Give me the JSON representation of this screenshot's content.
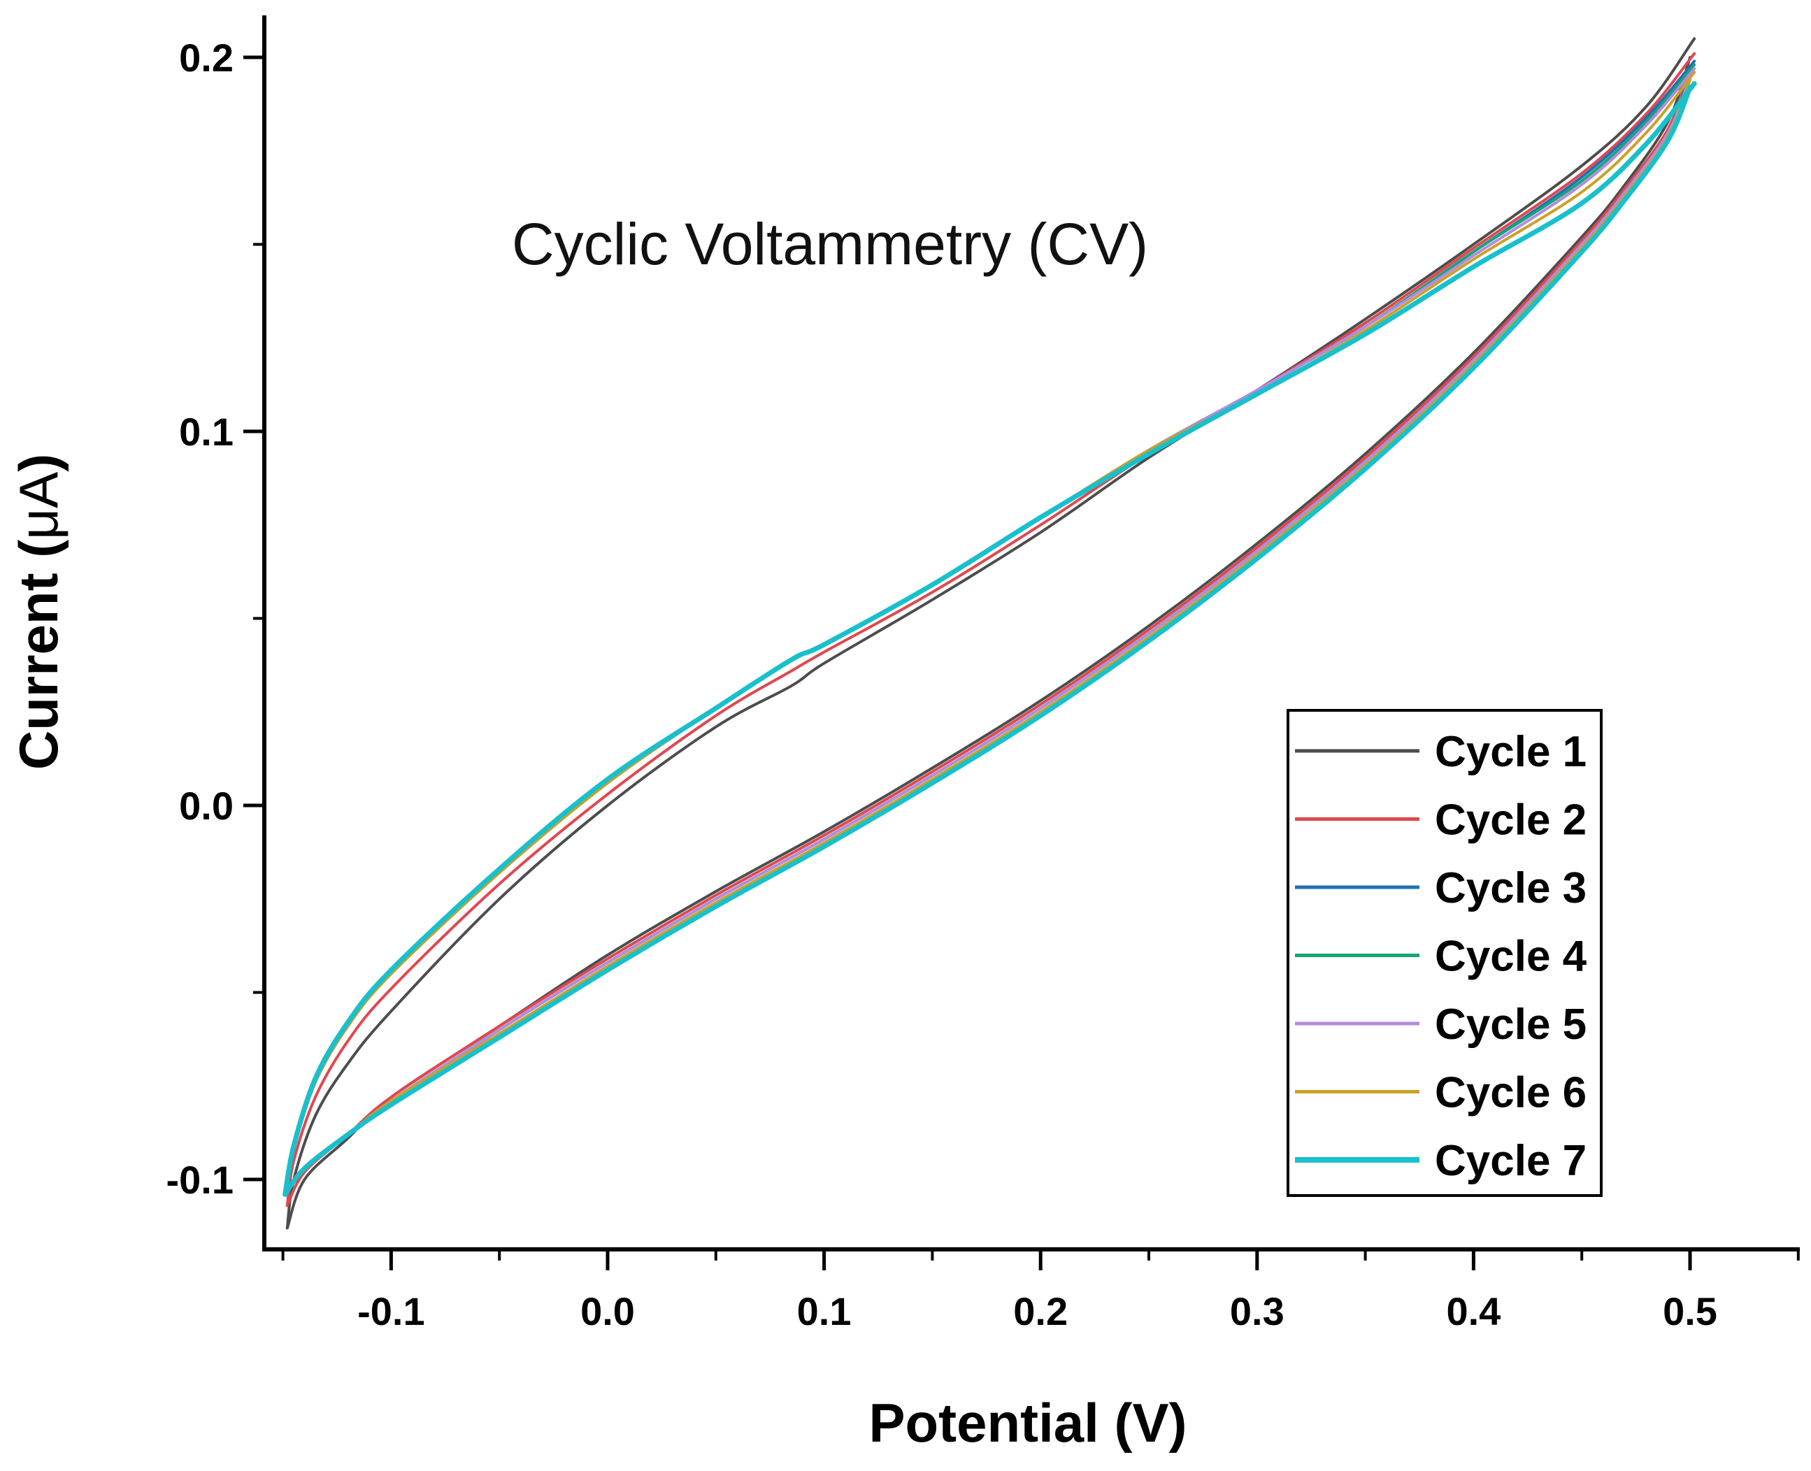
{
  "chart_data": {
    "type": "line",
    "title": "Cyclic Voltammetry (CV)",
    "xlabel": "Potential (V)",
    "ylabel_main": "Current (",
    "ylabel_unit": "μA",
    "ylabel_close": ")",
    "xlim": [
      -0.16,
      0.55
    ],
    "ylim": [
      -0.115,
      0.21
    ],
    "x_ticks": [
      -0.1,
      0.0,
      0.1,
      0.2,
      0.3,
      0.4,
      0.5
    ],
    "x_tick_labels": [
      "-0.1",
      "0.0",
      "0.1",
      "0.2",
      "0.3",
      "0.4",
      "0.5"
    ],
    "y_ticks": [
      -0.1,
      0.0,
      0.1,
      0.2
    ],
    "y_tick_labels": [
      "-0.1",
      "0.0",
      "0.1",
      "0.2"
    ],
    "legend_position": "bottom-right",
    "series": [
      {
        "name": "Cycle 1",
        "color": "#4d4d4d",
        "forward": [
          [
            -0.148,
            -0.113
          ],
          [
            -0.14,
            -0.1
          ],
          [
            -0.12,
            -0.089
          ],
          [
            -0.1,
            -0.078
          ],
          [
            -0.05,
            -0.059
          ],
          [
            0.0,
            -0.04
          ],
          [
            0.05,
            -0.023
          ],
          [
            0.1,
            -0.007
          ],
          [
            0.15,
            0.01
          ],
          [
            0.2,
            0.028
          ],
          [
            0.25,
            0.048
          ],
          [
            0.3,
            0.07
          ],
          [
            0.35,
            0.094
          ],
          [
            0.4,
            0.121
          ],
          [
            0.45,
            0.152
          ],
          [
            0.47,
            0.166
          ],
          [
            0.49,
            0.183
          ],
          [
            0.5,
            0.2
          ]
        ],
        "reverse": [
          [
            0.502,
            0.205
          ],
          [
            0.48,
            0.187
          ],
          [
            0.45,
            0.171
          ],
          [
            0.4,
            0.15
          ],
          [
            0.35,
            0.13
          ],
          [
            0.3,
            0.111
          ],
          [
            0.25,
            0.093
          ],
          [
            0.2,
            0.073
          ],
          [
            0.15,
            0.055
          ],
          [
            0.1,
            0.038
          ],
          [
            0.085,
            0.032
          ],
          [
            0.05,
            0.021
          ],
          [
            0.0,
            0.0
          ],
          [
            -0.05,
            -0.025
          ],
          [
            -0.1,
            -0.055
          ],
          [
            -0.12,
            -0.069
          ],
          [
            -0.135,
            -0.083
          ],
          [
            -0.145,
            -0.1
          ],
          [
            -0.148,
            -0.113
          ]
        ]
      },
      {
        "name": "Cycle 2",
        "color": "#e0484f",
        "forward": [
          [
            -0.148,
            -0.107
          ],
          [
            -0.14,
            -0.098
          ],
          [
            -0.12,
            -0.088
          ],
          [
            -0.1,
            -0.078
          ],
          [
            -0.05,
            -0.059
          ],
          [
            0.0,
            -0.041
          ],
          [
            0.05,
            -0.024
          ],
          [
            0.1,
            -0.008
          ],
          [
            0.15,
            0.009
          ],
          [
            0.2,
            0.027
          ],
          [
            0.25,
            0.047
          ],
          [
            0.3,
            0.069
          ],
          [
            0.35,
            0.093
          ],
          [
            0.4,
            0.12
          ],
          [
            0.45,
            0.151
          ],
          [
            0.47,
            0.165
          ],
          [
            0.49,
            0.181
          ],
          [
            0.5,
            0.197
          ]
        ],
        "reverse": [
          [
            0.502,
            0.201
          ],
          [
            0.48,
            0.185
          ],
          [
            0.45,
            0.169
          ],
          [
            0.4,
            0.149
          ],
          [
            0.35,
            0.129
          ],
          [
            0.3,
            0.111
          ],
          [
            0.25,
            0.094
          ],
          [
            0.2,
            0.075
          ],
          [
            0.15,
            0.057
          ],
          [
            0.1,
            0.041
          ],
          [
            0.085,
            0.036
          ],
          [
            0.05,
            0.024
          ],
          [
            0.0,
            0.003
          ],
          [
            -0.05,
            -0.021
          ],
          [
            -0.1,
            -0.049
          ],
          [
            -0.12,
            -0.063
          ],
          [
            -0.135,
            -0.078
          ],
          [
            -0.145,
            -0.095
          ],
          [
            -0.148,
            -0.107
          ]
        ]
      },
      {
        "name": "Cycle 3",
        "color": "#1f6fb8",
        "forward": [
          [
            -0.149,
            -0.104
          ],
          [
            -0.14,
            -0.097
          ],
          [
            -0.12,
            -0.088
          ],
          [
            -0.1,
            -0.079
          ],
          [
            -0.05,
            -0.06
          ],
          [
            0.0,
            -0.042
          ],
          [
            0.05,
            -0.025
          ],
          [
            0.1,
            -0.009
          ],
          [
            0.15,
            0.008
          ],
          [
            0.2,
            0.026
          ],
          [
            0.25,
            0.046
          ],
          [
            0.3,
            0.068
          ],
          [
            0.35,
            0.092
          ],
          [
            0.4,
            0.119
          ],
          [
            0.45,
            0.15
          ],
          [
            0.47,
            0.164
          ],
          [
            0.49,
            0.18
          ],
          [
            0.5,
            0.196
          ]
        ],
        "reverse": [
          [
            0.502,
            0.199
          ],
          [
            0.48,
            0.184
          ],
          [
            0.45,
            0.168
          ],
          [
            0.4,
            0.148
          ],
          [
            0.35,
            0.128
          ],
          [
            0.3,
            0.111
          ],
          [
            0.25,
            0.095
          ],
          [
            0.2,
            0.077
          ],
          [
            0.15,
            0.059
          ],
          [
            0.1,
            0.043
          ],
          [
            0.085,
            0.039
          ],
          [
            0.05,
            0.026
          ],
          [
            0.0,
            0.006
          ],
          [
            -0.05,
            -0.018
          ],
          [
            -0.1,
            -0.045
          ],
          [
            -0.12,
            -0.059
          ],
          [
            -0.135,
            -0.074
          ],
          [
            -0.145,
            -0.092
          ],
          [
            -0.149,
            -0.104
          ]
        ]
      },
      {
        "name": "Cycle 4",
        "color": "#17a57a",
        "forward": [
          [
            -0.149,
            -0.104
          ],
          [
            -0.14,
            -0.097
          ],
          [
            -0.12,
            -0.088
          ],
          [
            -0.1,
            -0.079
          ],
          [
            -0.05,
            -0.06
          ],
          [
            0.0,
            -0.042
          ],
          [
            0.05,
            -0.025
          ],
          [
            0.1,
            -0.009
          ],
          [
            0.15,
            0.008
          ],
          [
            0.2,
            0.026
          ],
          [
            0.25,
            0.046
          ],
          [
            0.3,
            0.068
          ],
          [
            0.35,
            0.092
          ],
          [
            0.4,
            0.119
          ],
          [
            0.45,
            0.15
          ],
          [
            0.47,
            0.164
          ],
          [
            0.49,
            0.18
          ],
          [
            0.5,
            0.195
          ]
        ],
        "reverse": [
          [
            0.502,
            0.198
          ],
          [
            0.48,
            0.183
          ],
          [
            0.45,
            0.167
          ],
          [
            0.4,
            0.148
          ],
          [
            0.35,
            0.128
          ],
          [
            0.3,
            0.111
          ],
          [
            0.25,
            0.095
          ],
          [
            0.2,
            0.077
          ],
          [
            0.15,
            0.059
          ],
          [
            0.1,
            0.043
          ],
          [
            0.085,
            0.039
          ],
          [
            0.05,
            0.026
          ],
          [
            0.0,
            0.006
          ],
          [
            -0.05,
            -0.018
          ],
          [
            -0.1,
            -0.045
          ],
          [
            -0.12,
            -0.059
          ],
          [
            -0.135,
            -0.074
          ],
          [
            -0.145,
            -0.092
          ],
          [
            -0.149,
            -0.104
          ]
        ]
      },
      {
        "name": "Cycle 5",
        "color": "#b48be0",
        "forward": [
          [
            -0.149,
            -0.104
          ],
          [
            -0.14,
            -0.097
          ],
          [
            -0.12,
            -0.088
          ],
          [
            -0.1,
            -0.079
          ],
          [
            -0.05,
            -0.06
          ],
          [
            0.0,
            -0.042
          ],
          [
            0.05,
            -0.025
          ],
          [
            0.1,
            -0.009
          ],
          [
            0.15,
            0.008
          ],
          [
            0.2,
            0.026
          ],
          [
            0.25,
            0.046
          ],
          [
            0.3,
            0.068
          ],
          [
            0.35,
            0.092
          ],
          [
            0.4,
            0.119
          ],
          [
            0.45,
            0.15
          ],
          [
            0.47,
            0.164
          ],
          [
            0.49,
            0.18
          ],
          [
            0.5,
            0.195
          ]
        ],
        "reverse": [
          [
            0.502,
            0.197
          ],
          [
            0.48,
            0.182
          ],
          [
            0.45,
            0.166
          ],
          [
            0.4,
            0.147
          ],
          [
            0.35,
            0.128
          ],
          [
            0.3,
            0.111
          ],
          [
            0.25,
            0.095
          ],
          [
            0.2,
            0.077
          ],
          [
            0.15,
            0.059
          ],
          [
            0.1,
            0.043
          ],
          [
            0.085,
            0.039
          ],
          [
            0.05,
            0.026
          ],
          [
            0.0,
            0.006
          ],
          [
            -0.05,
            -0.018
          ],
          [
            -0.1,
            -0.045
          ],
          [
            -0.12,
            -0.059
          ],
          [
            -0.135,
            -0.074
          ],
          [
            -0.145,
            -0.092
          ],
          [
            -0.149,
            -0.104
          ]
        ]
      },
      {
        "name": "Cycle 6",
        "color": "#c9a227",
        "forward": [
          [
            -0.149,
            -0.104
          ],
          [
            -0.14,
            -0.097
          ],
          [
            -0.12,
            -0.088
          ],
          [
            -0.1,
            -0.079
          ],
          [
            -0.05,
            -0.061
          ],
          [
            0.0,
            -0.043
          ],
          [
            0.05,
            -0.026
          ],
          [
            0.1,
            -0.01
          ],
          [
            0.15,
            0.007
          ],
          [
            0.2,
            0.025
          ],
          [
            0.25,
            0.045
          ],
          [
            0.3,
            0.067
          ],
          [
            0.35,
            0.091
          ],
          [
            0.4,
            0.118
          ],
          [
            0.45,
            0.149
          ],
          [
            0.47,
            0.163
          ],
          [
            0.49,
            0.179
          ],
          [
            0.5,
            0.194
          ]
        ],
        "reverse": [
          [
            0.502,
            0.196
          ],
          [
            0.48,
            0.18
          ],
          [
            0.45,
            0.164
          ],
          [
            0.4,
            0.146
          ],
          [
            0.35,
            0.127
          ],
          [
            0.3,
            0.11
          ],
          [
            0.25,
            0.095
          ],
          [
            0.2,
            0.077
          ],
          [
            0.15,
            0.059
          ],
          [
            0.1,
            0.043
          ],
          [
            0.085,
            0.039
          ],
          [
            0.05,
            0.026
          ],
          [
            0.0,
            0.006
          ],
          [
            -0.05,
            -0.018
          ],
          [
            -0.1,
            -0.045
          ],
          [
            -0.12,
            -0.059
          ],
          [
            -0.135,
            -0.074
          ],
          [
            -0.145,
            -0.092
          ],
          [
            -0.149,
            -0.104
          ]
        ]
      },
      {
        "name": "Cycle 7",
        "color": "#19c0cc",
        "forward": [
          [
            -0.149,
            -0.104
          ],
          [
            -0.14,
            -0.097
          ],
          [
            -0.12,
            -0.088
          ],
          [
            -0.1,
            -0.08
          ],
          [
            -0.05,
            -0.062
          ],
          [
            0.0,
            -0.044
          ],
          [
            0.05,
            -0.027
          ],
          [
            0.1,
            -0.011
          ],
          [
            0.15,
            0.006
          ],
          [
            0.2,
            0.024
          ],
          [
            0.25,
            0.044
          ],
          [
            0.3,
            0.066
          ],
          [
            0.35,
            0.09
          ],
          [
            0.4,
            0.117
          ],
          [
            0.45,
            0.148
          ],
          [
            0.47,
            0.162
          ],
          [
            0.49,
            0.178
          ],
          [
            0.5,
            0.192
          ]
        ],
        "reverse": [
          [
            0.502,
            0.193
          ],
          [
            0.48,
            0.177
          ],
          [
            0.45,
            0.161
          ],
          [
            0.4,
            0.144
          ],
          [
            0.35,
            0.126
          ],
          [
            0.3,
            0.11
          ],
          [
            0.25,
            0.094
          ],
          [
            0.2,
            0.077
          ],
          [
            0.15,
            0.059
          ],
          [
            0.1,
            0.043
          ],
          [
            0.085,
            0.039
          ],
          [
            0.05,
            0.026
          ],
          [
            0.0,
            0.007
          ],
          [
            -0.05,
            -0.017
          ],
          [
            -0.1,
            -0.044
          ],
          [
            -0.12,
            -0.058
          ],
          [
            -0.135,
            -0.073
          ],
          [
            -0.145,
            -0.091
          ],
          [
            -0.149,
            -0.104
          ]
        ]
      }
    ]
  }
}
